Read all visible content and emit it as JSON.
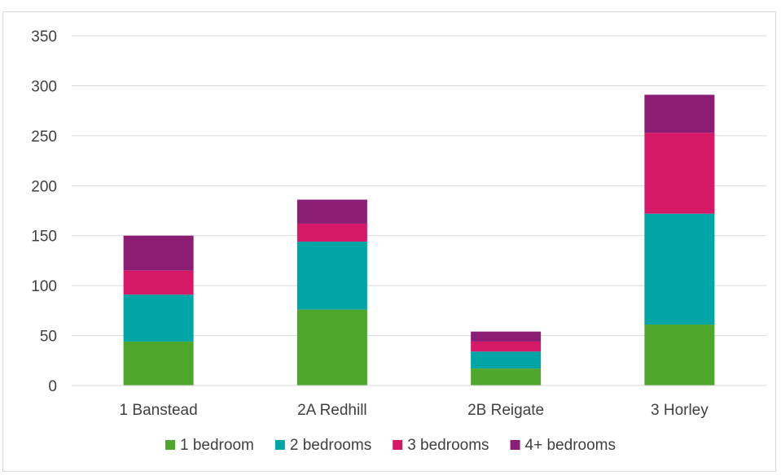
{
  "chart_data": {
    "type": "bar",
    "stacked": true,
    "categories": [
      "1 Banstead",
      "2A Redhill",
      "2B Reigate",
      "3 Horley"
    ],
    "series": [
      {
        "name": "1 bedroom",
        "color": "#4ea72a",
        "values": [
          44,
          76,
          17,
          61
        ]
      },
      {
        "name": "2 bedrooms",
        "color": "#00a5a5",
        "values": [
          47,
          68,
          17,
          111
        ]
      },
      {
        "name": "3 bedrooms",
        "color": "#d51967",
        "values": [
          24,
          18,
          10,
          81
        ]
      },
      {
        "name": "4+ bedrooms",
        "color": "#8b1e74",
        "values": [
          35,
          24,
          10,
          38
        ]
      }
    ],
    "title": "",
    "xlabel": "",
    "ylabel": "",
    "ylim": [
      0,
      350
    ],
    "yticks": [
      "0",
      "50",
      "100",
      "150",
      "200",
      "250",
      "300",
      "350"
    ],
    "grid": true,
    "legend_position": "bottom"
  }
}
